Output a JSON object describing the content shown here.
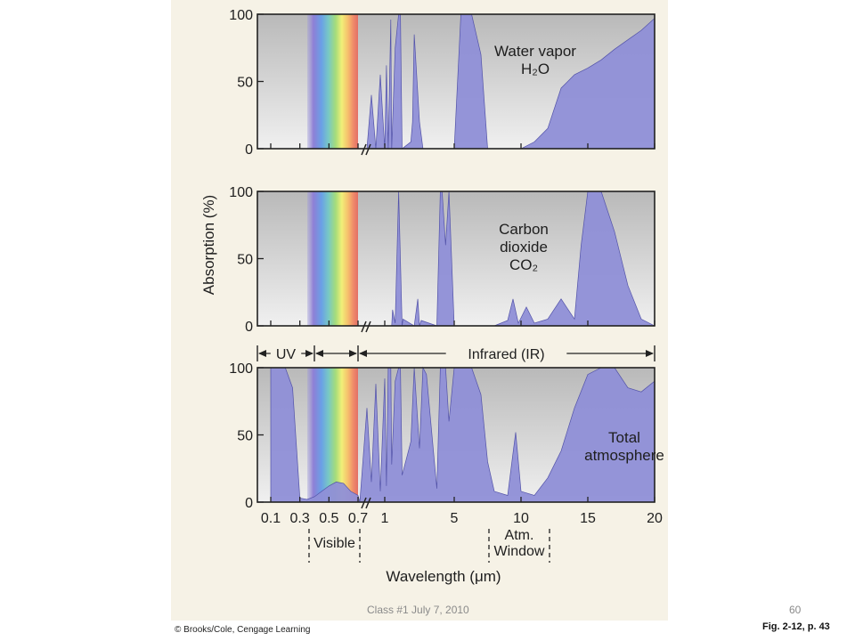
{
  "slide": {
    "footer_center": "Class #1 July 7, 2010",
    "page_number": "60",
    "credit": "© Brooks/Cole, Cengage Learning",
    "figure_ref": "Fig. 2-12, p. 43"
  },
  "colors": {
    "absorption_fill": "#8f8fd7",
    "absorption_stroke": "#5252a8",
    "plot_background_top": "#bdbdbd",
    "plot_background_bottom": "#efefef",
    "panel_background": "#f6f2e6"
  },
  "chart_data": {
    "type": "area",
    "ylabel": "Absorption (%)",
    "xlabel": "Wavelength (μm)",
    "x_scale": "broken axis: 0.1–0.7 μm linear, 0.7–20 μm compressed",
    "x_ticks": [
      "0.1",
      "0.3",
      "0.5",
      "0.7",
      "1",
      "5",
      "10",
      "15",
      "20"
    ],
    "y_ticks": [
      "0",
      "50",
      "100"
    ],
    "ylim": [
      0,
      100
    ],
    "regions": [
      {
        "label": "UV",
        "from": 0.1,
        "to": 0.4
      },
      {
        "label": "Infrared (IR)",
        "from": 0.7,
        "to": 20
      }
    ],
    "bracketed_ranges": [
      {
        "lines": [
          "Visible"
        ],
        "from": 0.4,
        "to": 0.7
      },
      {
        "lines": [
          "Atm.",
          "Window"
        ],
        "from": 8,
        "to": 12
      }
    ],
    "panels": [
      {
        "label_lines": [
          "Water vapor",
          "H₂O"
        ],
        "series": [
          {
            "x": [
              0.1,
              0.69,
              0.7,
              0.8,
              0.85,
              0.9,
              0.95,
              1.0,
              1.1,
              1.2,
              1.35,
              1.4,
              1.6,
              1.8,
              1.9,
              2.0,
              2.5,
              2.6,
              2.7,
              3.0,
              3.2,
              4.0,
              5.0,
              5.5,
              6.0,
              6.3,
              7.0,
              7.5,
              8.0,
              9.0,
              10.0,
              11.0,
              12.0,
              13.0,
              14.0,
              15.0,
              16.0,
              17.0,
              18.0,
              19.0,
              20.0
            ],
            "y": [
              0,
              0,
              0,
              0,
              40,
              0,
              55,
              0,
              62,
              0,
              96,
              0,
              75,
              100,
              100,
              0,
              5,
              20,
              85,
              20,
              0,
              0,
              0,
              100,
              100,
              100,
              70,
              0,
              0,
              0,
              0,
              5,
              15,
              45,
              55,
              60,
              66,
              74,
              81,
              88,
              97
            ]
          }
        ]
      },
      {
        "label_lines": [
          "Carbon",
          "dioxide",
          "CO₂"
        ],
        "series": [
          {
            "x": [
              0.1,
              0.7,
              1.2,
              1.4,
              1.45,
              1.6,
              1.8,
              2.0,
              2.05,
              2.7,
              2.9,
              3.0,
              3.1,
              4.0,
              4.2,
              4.3,
              4.5,
              4.7,
              5.0,
              6.0,
              8.0,
              9.0,
              9.4,
              9.8,
              10.4,
              11.0,
              12.0,
              13.0,
              14.0,
              14.5,
              15.0,
              16.0,
              17.0,
              18.0,
              19.0,
              20.0
            ],
            "y": [
              0,
              0,
              0,
              0,
              12,
              2,
              100,
              0,
              5,
              0,
              20,
              0,
              4,
              0,
              100,
              100,
              60,
              100,
              0,
              0,
              0,
              4,
              20,
              2,
              14,
              2,
              5,
              20,
              5,
              60,
              100,
              100,
              70,
              30,
              5,
              0
            ]
          }
        ]
      },
      {
        "label_lines": [
          "Total",
          "atmosphere"
        ],
        "series": [
          {
            "x": [
              0.1,
              0.2,
              0.25,
              0.3,
              0.35,
              0.4,
              0.45,
              0.5,
              0.55,
              0.6,
              0.65,
              0.7,
              0.72,
              0.8,
              0.85,
              0.9,
              0.95,
              1.0,
              1.1,
              1.2,
              1.35,
              1.4,
              1.6,
              1.8,
              1.9,
              2.0,
              2.5,
              2.7,
              3.0,
              3.2,
              3.4,
              4.0,
              4.2,
              4.5,
              4.7,
              5.0,
              5.5,
              6.3,
              7.0,
              7.5,
              8.0,
              9.0,
              9.6,
              10.0,
              11.0,
              12.0,
              13.0,
              14.0,
              15.0,
              16.0,
              17.0,
              18.0,
              19.0,
              20.0
            ],
            "y": [
              100,
              100,
              85,
              3,
              2,
              4,
              8,
              12,
              15,
              14,
              8,
              5,
              0,
              70,
              15,
              88,
              8,
              92,
              12,
              100,
              100,
              28,
              90,
              100,
              100,
              20,
              45,
              100,
              40,
              100,
              95,
              10,
              100,
              100,
              60,
              100,
              100,
              100,
              80,
              30,
              8,
              5,
              52,
              8,
              5,
              18,
              38,
              70,
              95,
              100,
              100,
              85,
              82,
              90
            ]
          }
        ]
      }
    ]
  }
}
